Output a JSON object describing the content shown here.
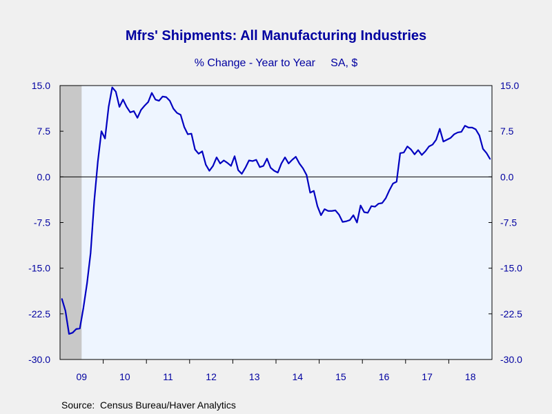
{
  "colors": {
    "background": "#f0f0f0",
    "plot_background": "#eef5ff",
    "recession_shade": "#c8c8c8",
    "line": "#0000c0",
    "text": "#0000a0"
  },
  "chart_data": {
    "type": "line",
    "title": "Mfrs' Shipments: All Manufacturing Industries",
    "subtitle": "% Change - Year to Year     SA, $",
    "source": "Source:  Census Bureau/Haver Analytics",
    "ylim": [
      -30.0,
      15.0
    ],
    "yticks": [
      "15.0",
      "7.5",
      "0.0",
      "-7.5",
      "-15.0",
      "-22.5",
      "-30.0"
    ],
    "ytick_values": [
      15.0,
      7.5,
      0.0,
      -7.5,
      -15.0,
      -22.5,
      -30.0
    ],
    "xlim": [
      "2009-01",
      "2018-12"
    ],
    "xtick_labels": [
      "09",
      "10",
      "11",
      "12",
      "13",
      "14",
      "15",
      "16",
      "17",
      "18"
    ],
    "recession_shading": {
      "start": "2009-01",
      "end": "2009-06"
    },
    "zero_line": true,
    "grid": false,
    "series": [
      {
        "x": [
          "2009-01",
          "2009-02",
          "2009-03",
          "2009-04",
          "2009-05",
          "2009-06",
          "2009-07",
          "2009-08",
          "2009-09",
          "2009-10",
          "2009-11",
          "2009-12",
          "2010-01",
          "2010-02",
          "2010-03",
          "2010-04",
          "2010-05",
          "2010-06",
          "2010-07",
          "2010-08",
          "2010-09",
          "2010-10",
          "2010-11",
          "2010-12",
          "2011-01",
          "2011-02",
          "2011-03",
          "2011-04",
          "2011-05",
          "2011-06",
          "2011-07",
          "2011-08",
          "2011-09",
          "2011-10",
          "2011-11",
          "2011-12",
          "2012-01",
          "2012-02",
          "2012-03",
          "2012-04",
          "2012-05",
          "2012-06",
          "2012-07",
          "2012-08",
          "2012-09",
          "2012-10",
          "2012-11",
          "2012-12",
          "2013-01",
          "2013-02",
          "2013-03",
          "2013-04",
          "2013-05",
          "2013-06",
          "2013-07",
          "2013-08",
          "2013-09",
          "2013-10",
          "2013-11",
          "2013-12",
          "2014-01",
          "2014-02",
          "2014-03",
          "2014-04",
          "2014-05",
          "2014-06",
          "2014-07",
          "2014-08",
          "2014-09",
          "2014-10",
          "2014-11",
          "2014-12",
          "2015-01",
          "2015-02",
          "2015-03",
          "2015-04",
          "2015-05",
          "2015-06",
          "2015-07",
          "2015-08",
          "2015-09",
          "2015-10",
          "2015-11",
          "2015-12",
          "2016-01",
          "2016-02",
          "2016-03",
          "2016-04",
          "2016-05",
          "2016-06",
          "2016-07",
          "2016-08",
          "2016-09",
          "2016-10",
          "2016-11",
          "2016-12",
          "2017-01",
          "2017-02",
          "2017-03",
          "2017-04",
          "2017-05",
          "2017-06",
          "2017-07",
          "2017-08",
          "2017-09",
          "2017-10",
          "2017-11",
          "2017-12",
          "2018-01",
          "2018-02",
          "2018-03",
          "2018-04",
          "2018-05",
          "2018-06",
          "2018-07",
          "2018-08",
          "2018-09",
          "2018-10",
          "2018-11",
          "2018-12"
        ],
        "values": [
          -20.0,
          -22.0,
          -25.8,
          -25.6,
          -25.0,
          -24.9,
          -21.5,
          -17.5,
          -12.5,
          -4.0,
          2.5,
          7.5,
          6.3,
          11.5,
          14.7,
          14.0,
          11.5,
          12.7,
          11.5,
          10.6,
          10.8,
          9.7,
          11.0,
          11.7,
          12.3,
          13.8,
          12.7,
          12.5,
          13.2,
          13.1,
          12.5,
          11.2,
          10.5,
          10.2,
          8.2,
          7.0,
          7.1,
          4.5,
          3.8,
          4.2,
          2.0,
          1.0,
          1.8,
          3.2,
          2.2,
          2.7,
          2.3,
          1.8,
          3.4,
          1.1,
          0.5,
          1.5,
          2.7,
          2.6,
          2.8,
          1.6,
          1.8,
          3.0,
          1.5,
          1.0,
          0.7,
          2.2,
          3.2,
          2.2,
          2.8,
          3.3,
          2.2,
          1.4,
          0.3,
          -2.6,
          -2.3,
          -4.8,
          -6.3,
          -5.3,
          -5.6,
          -5.6,
          -5.5,
          -6.2,
          -7.4,
          -7.3,
          -7.1,
          -6.3,
          -7.5,
          -4.7,
          -5.8,
          -5.9,
          -4.8,
          -4.9,
          -4.4,
          -4.3,
          -3.5,
          -2.2,
          -1.1,
          -0.8,
          3.9,
          4.0,
          5.0,
          4.5,
          3.7,
          4.4,
          3.6,
          4.2,
          5.0,
          5.3,
          6.1,
          7.9,
          5.8,
          6.1,
          6.4,
          7.0,
          7.3,
          7.4,
          8.4,
          8.1,
          8.1,
          7.8,
          6.8,
          4.6,
          3.9,
          2.9
        ]
      }
    ]
  }
}
